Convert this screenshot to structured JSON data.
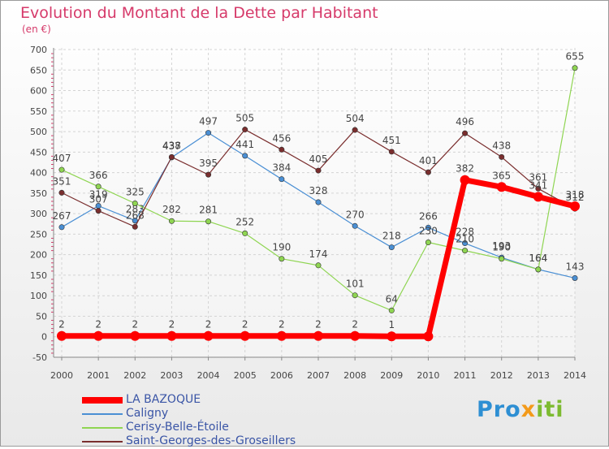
{
  "title": "Evolution du Montant de la Dette par Habitant",
  "unit_label": "(en €)",
  "logo": {
    "part1": "Pro",
    "part2": "x",
    "part3": "iti"
  },
  "chart_data": {
    "type": "line",
    "title": "Evolution du Montant de la Dette par Habitant",
    "ylabel": "(en €)",
    "xlabel": "",
    "x": [
      2000,
      2001,
      2002,
      2003,
      2004,
      2005,
      2006,
      2007,
      2008,
      2009,
      2010,
      2011,
      2012,
      2013,
      2014
    ],
    "ylim": [
      -50,
      700
    ],
    "yticks": [
      -50,
      0,
      50,
      100,
      150,
      200,
      250,
      300,
      350,
      400,
      450,
      500,
      550,
      600,
      650,
      700
    ],
    "grid": true,
    "legend_position": "bottom-left",
    "series": [
      {
        "name": "LA BAZOQUE",
        "color": "#ff0000",
        "bold": true,
        "values": [
          2,
          2,
          2,
          2,
          2,
          2,
          2,
          2,
          2,
          1,
          1,
          382,
          365,
          341,
          318
        ],
        "labels": [
          "2",
          "2",
          "2",
          "2",
          "2",
          "2",
          "2",
          "2",
          "2",
          "1",
          "",
          "382",
          "365",
          "341",
          "318"
        ]
      },
      {
        "name": "Caligny",
        "color": "#4a8fd4",
        "values": [
          267,
          319,
          283,
          437,
          497,
          441,
          384,
          328,
          270,
          218,
          266,
          228,
          193,
          164,
          143
        ],
        "labels": [
          "267",
          "319",
          "283",
          "437",
          "497",
          "441",
          "384",
          "328",
          "270",
          "218",
          "266",
          "228",
          "193",
          "164",
          "143"
        ]
      },
      {
        "name": "Cerisy-Belle-Étoile",
        "color": "#8fd552",
        "values": [
          407,
          366,
          325,
          282,
          281,
          252,
          190,
          174,
          101,
          64,
          230,
          210,
          190,
          164,
          655
        ],
        "labels": [
          "407",
          "366",
          "325",
          "282",
          "281",
          "252",
          "190",
          "174",
          "101",
          "64",
          "230",
          "210",
          "190",
          "164",
          "655"
        ]
      },
      {
        "name": "Saint-Georges-des-Groseillers",
        "color": "#7a2e2e",
        "values": [
          351,
          307,
          268,
          438,
          395,
          505,
          456,
          405,
          504,
          451,
          401,
          496,
          438,
          361,
          312
        ],
        "labels": [
          "351",
          "307",
          "268",
          "438",
          "395",
          "505",
          "456",
          "405",
          "504",
          "451",
          "401",
          "496",
          "438",
          "361",
          "312"
        ]
      }
    ]
  }
}
